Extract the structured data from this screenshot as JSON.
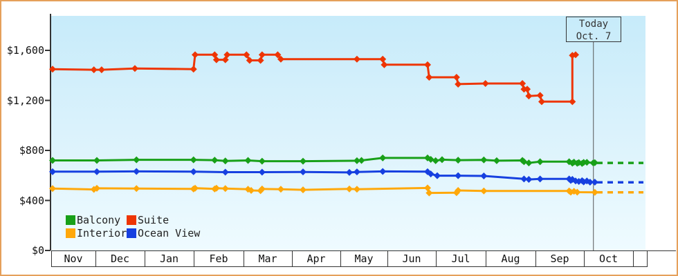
{
  "window": {
    "border_color": "#e5a05a",
    "background_color": "#ffffff",
    "plot_bg_top": "#c7ebfa",
    "plot_bg_bottom": "#effbff"
  },
  "chart_data": {
    "type": "line",
    "style": "step-price-history",
    "title": "",
    "xlabel": "",
    "ylabel": "",
    "ylim": [
      0,
      1875
    ],
    "grid": false,
    "legend_position": "bottom-left-inside",
    "y_ticks": [
      {
        "label": "$1,600",
        "value": 1600
      },
      {
        "label": "$1,200",
        "value": 1200
      },
      {
        "label": "$800",
        "value": 800
      },
      {
        "label": "$400",
        "value": 400
      },
      {
        "label": "$0",
        "value": 0
      }
    ],
    "x_months": [
      "Nov",
      "Dec",
      "Jan",
      "Feb",
      "Mar",
      "Apr",
      "May",
      "Jun",
      "Jul",
      "Aug",
      "Sep",
      "Oct"
    ],
    "today": {
      "line1": "Today",
      "line2": "Oct. 7",
      "date": "Oct 7"
    },
    "legend": [
      {
        "label": "Balcony",
        "color": "#18a018"
      },
      {
        "label": "Suite",
        "color": "#ee3504"
      },
      {
        "label": "Interior",
        "color": "#ffa80a"
      },
      {
        "label": "Ocean View",
        "color": "#1640e0"
      }
    ],
    "series": [
      {
        "name": "Balcony",
        "color": "#18a018",
        "dashed_continuation": 700,
        "points": [
          [
            "Nov 1",
            720
          ],
          [
            "Dec 1",
            720
          ],
          [
            "Dec 26",
            725
          ],
          [
            "Jan 31",
            725
          ],
          [
            "Feb 12",
            722
          ],
          [
            "Feb 18",
            716
          ],
          [
            "Mar 3",
            720
          ],
          [
            "Mar 12",
            714
          ],
          [
            "Apr 7",
            714
          ],
          [
            "May 11",
            718
          ],
          [
            "May 14",
            720
          ],
          [
            "May 28",
            740
          ],
          [
            "Jun 25",
            740
          ],
          [
            "Jun 27",
            728
          ],
          [
            "Jun 30",
            718
          ],
          [
            "Jul 4",
            726
          ],
          [
            "Jul 14",
            722
          ],
          [
            "Jul 30",
            724
          ],
          [
            "Aug 7",
            718
          ],
          [
            "Aug 23",
            720
          ],
          [
            "Aug 24",
            710
          ],
          [
            "Aug 27",
            700
          ],
          [
            "Sep 3",
            710
          ],
          [
            "Sep 21",
            710
          ],
          [
            "Sep 23",
            698
          ],
          [
            "Sep 24",
            706
          ],
          [
            "Sep 26",
            697
          ],
          [
            "Sep 27",
            703
          ],
          [
            "Sep 29",
            696
          ],
          [
            "Sep 30",
            704
          ],
          [
            "Oct 2",
            705
          ],
          [
            "Oct 6",
            700
          ],
          [
            "Oct 7",
            702
          ]
        ]
      },
      {
        "name": "Suite",
        "color": "#ee3504",
        "dashed_continuation": null,
        "points": [
          [
            "Nov 1",
            1450
          ],
          [
            "Nov 29",
            1445
          ],
          [
            "Dec 4",
            1445
          ],
          [
            "Dec 25",
            1455
          ],
          [
            "Jan 31",
            1450
          ],
          [
            "Feb 1",
            1565
          ],
          [
            "Feb 12",
            1565
          ],
          [
            "Feb 13",
            1525
          ],
          [
            "Feb 18",
            1525
          ],
          [
            "Feb 19",
            1565
          ],
          [
            "Mar 2",
            1565
          ],
          [
            "Mar 4",
            1520
          ],
          [
            "Mar 11",
            1520
          ],
          [
            "Mar 12",
            1565
          ],
          [
            "Mar 22",
            1565
          ],
          [
            "Mar 24",
            1530
          ],
          [
            "May 11",
            1530
          ],
          [
            "May 28",
            1530
          ],
          [
            "May 29",
            1485
          ],
          [
            "Jun 25",
            1485
          ],
          [
            "Jun 26",
            1385
          ],
          [
            "Jul 13",
            1385
          ],
          [
            "Jul 14",
            1330
          ],
          [
            "Jul 31",
            1335
          ],
          [
            "Aug 23",
            1335
          ],
          [
            "Aug 24",
            1290
          ],
          [
            "Aug 26",
            1290
          ],
          [
            "Aug 27",
            1235
          ],
          [
            "Sep 3",
            1240
          ],
          [
            "Sep 4",
            1190
          ],
          [
            "Sep 23",
            1190
          ],
          [
            "Sep 23",
            1560
          ],
          [
            "Sep 25",
            1565
          ]
        ]
      },
      {
        "name": "Interior",
        "color": "#ffa80a",
        "dashed_continuation": 465,
        "points": [
          [
            "Nov 1",
            495
          ],
          [
            "Nov 29",
            488
          ],
          [
            "Dec 1",
            497
          ],
          [
            "Dec 26",
            495
          ],
          [
            "Jan 31",
            492
          ],
          [
            "Feb 1",
            498
          ],
          [
            "Feb 12",
            492
          ],
          [
            "Feb 13",
            498
          ],
          [
            "Feb 18",
            495
          ],
          [
            "Mar 3",
            490
          ],
          [
            "Mar 5",
            480
          ],
          [
            "Mar 11",
            478
          ],
          [
            "Mar 12",
            492
          ],
          [
            "Mar 24",
            490
          ],
          [
            "Apr 7",
            485
          ],
          [
            "May 6",
            492
          ],
          [
            "May 11",
            490
          ],
          [
            "Jun 25",
            500
          ],
          [
            "Jun 26",
            460
          ],
          [
            "Jul 13",
            462
          ],
          [
            "Jul 14",
            480
          ],
          [
            "Jul 30",
            476
          ],
          [
            "Sep 21",
            476
          ],
          [
            "Sep 22",
            466
          ],
          [
            "Sep 24",
            473
          ],
          [
            "Sep 26",
            466
          ],
          [
            "Oct 7",
            465
          ]
        ]
      },
      {
        "name": "Ocean View",
        "color": "#1640e0",
        "dashed_continuation": 545,
        "points": [
          [
            "Nov 1",
            630
          ],
          [
            "Dec 1",
            630
          ],
          [
            "Dec 26",
            632
          ],
          [
            "Jan 31",
            630
          ],
          [
            "Feb 18",
            626
          ],
          [
            "Mar 12",
            626
          ],
          [
            "Apr 7",
            628
          ],
          [
            "May 6",
            624
          ],
          [
            "May 11",
            628
          ],
          [
            "May 28",
            632
          ],
          [
            "Jun 25",
            630
          ],
          [
            "Jun 27",
            612
          ],
          [
            "Jul 1",
            598
          ],
          [
            "Jul 14",
            598
          ],
          [
            "Jul 30",
            596
          ],
          [
            "Aug 24",
            572
          ],
          [
            "Aug 27",
            568
          ],
          [
            "Sep 3",
            572
          ],
          [
            "Sep 21",
            572
          ],
          [
            "Sep 22",
            560
          ],
          [
            "Sep 23",
            568
          ],
          [
            "Sep 25",
            556
          ],
          [
            "Sep 27",
            552
          ],
          [
            "Sep 29",
            558
          ],
          [
            "Sep 30",
            548
          ],
          [
            "Oct 2",
            556
          ],
          [
            "Oct 4",
            546
          ],
          [
            "Oct 7",
            546
          ]
        ]
      }
    ]
  }
}
